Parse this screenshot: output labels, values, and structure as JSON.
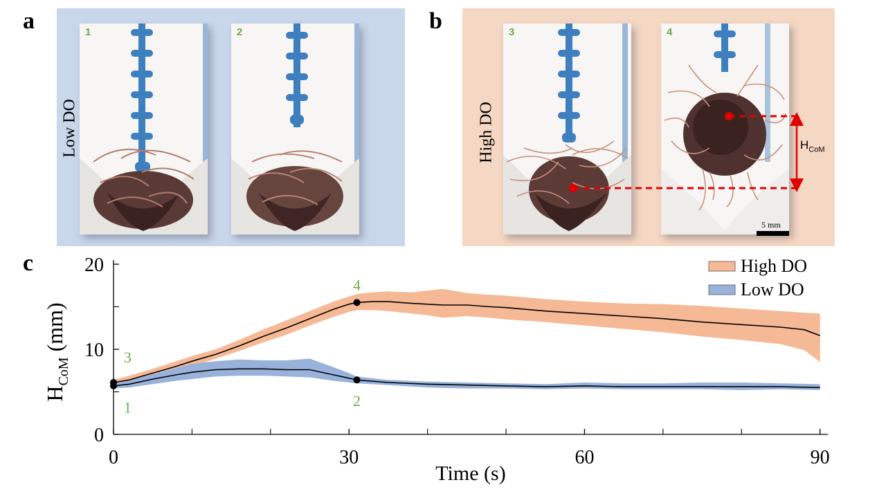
{
  "panels": {
    "a": {
      "letter": "a",
      "label": "Low DO",
      "photos": [
        "1",
        "2"
      ]
    },
    "b": {
      "letter": "b",
      "label": "High DO",
      "photos": [
        "3",
        "4"
      ],
      "hcom_label_main": "H",
      "hcom_label_sub": "CoM",
      "scale_label": "5 mm"
    },
    "c": {
      "letter": "c"
    }
  },
  "colors": {
    "panel_a_bg": "#c9d7eb",
    "panel_b_bg": "#f5d8c4",
    "high_do_band": "#f6b995",
    "low_do_band": "#98b2dc",
    "mean_line": "#000000",
    "marker": "#e00000",
    "photo_numbers": "#6fa94a",
    "annotation_numbers": "#6fa94a"
  },
  "chart_data": {
    "type": "area",
    "xlabel": "Time (s)",
    "ylabel_main": "H",
    "ylabel_sub": "CoM",
    "ylabel_unit": " (mm)",
    "xlim": [
      0,
      91
    ],
    "ylim": [
      0,
      20
    ],
    "xticks": [
      0,
      30,
      60,
      90
    ],
    "xminor_ticks": [
      10,
      20,
      40,
      50,
      70,
      80
    ],
    "yticks": [
      0,
      10,
      20
    ],
    "yminor_ticks": [
      5,
      15
    ],
    "legend_position": "top-right",
    "series": [
      {
        "name": "High DO",
        "x": [
          0,
          2,
          5,
          8,
          10,
          13,
          16,
          19,
          22,
          25,
          28,
          30,
          31,
          33,
          35,
          38,
          40,
          42,
          45,
          48,
          50,
          55,
          60,
          65,
          70,
          75,
          80,
          85,
          88,
          90
        ],
        "mean": [
          6.1,
          6.4,
          7.2,
          8.0,
          8.6,
          9.4,
          10.4,
          11.5,
          12.5,
          13.6,
          14.7,
          15.3,
          15.5,
          15.6,
          15.6,
          15.4,
          15.3,
          15.2,
          15.2,
          15.0,
          14.9,
          14.5,
          14.2,
          13.9,
          13.6,
          13.2,
          12.9,
          12.6,
          12.3,
          11.6
        ],
        "upper": [
          6.4,
          6.9,
          7.7,
          8.6,
          9.2,
          10.0,
          11.1,
          12.3,
          13.4,
          14.5,
          15.6,
          16.2,
          16.5,
          16.7,
          16.8,
          16.7,
          16.9,
          17.1,
          16.6,
          16.4,
          16.3,
          15.9,
          15.6,
          15.4,
          15.3,
          15.1,
          14.8,
          14.5,
          14.3,
          14.2
        ],
        "lower": [
          5.8,
          6.0,
          6.8,
          7.5,
          8.0,
          8.9,
          9.8,
          10.8,
          11.7,
          12.8,
          13.8,
          14.4,
          14.6,
          14.6,
          14.5,
          14.2,
          14.0,
          13.7,
          13.9,
          13.7,
          13.5,
          13.2,
          12.8,
          12.4,
          12.0,
          11.5,
          11.1,
          10.6,
          9.9,
          8.5
        ]
      },
      {
        "name": "Low DO",
        "x": [
          0,
          2,
          5,
          8,
          10,
          13,
          16,
          19,
          22,
          25,
          28,
          30,
          31,
          35,
          40,
          45,
          50,
          55,
          60,
          65,
          70,
          75,
          80,
          85,
          90
        ],
        "mean": [
          5.7,
          5.9,
          6.5,
          7.0,
          7.3,
          7.6,
          7.7,
          7.7,
          7.6,
          7.6,
          7.0,
          6.6,
          6.4,
          6.1,
          5.9,
          5.8,
          5.7,
          5.6,
          5.7,
          5.6,
          5.6,
          5.6,
          5.6,
          5.6,
          5.5
        ],
        "upper": [
          6.0,
          6.3,
          7.1,
          7.8,
          8.3,
          8.6,
          8.8,
          8.7,
          8.7,
          8.9,
          7.9,
          7.2,
          6.8,
          6.4,
          6.2,
          6.1,
          6.0,
          5.9,
          6.1,
          6.0,
          6.0,
          6.1,
          6.1,
          6.0,
          5.9
        ],
        "lower": [
          5.4,
          5.5,
          5.9,
          6.3,
          6.5,
          6.8,
          6.9,
          6.9,
          6.8,
          6.7,
          6.3,
          6.1,
          6.0,
          5.8,
          5.5,
          5.4,
          5.4,
          5.3,
          5.4,
          5.3,
          5.3,
          5.3,
          5.2,
          5.3,
          5.2
        ]
      }
    ],
    "points": [
      {
        "label": "1",
        "x": 0,
        "y": 5.7,
        "label_x": 1.8,
        "label_y": 3.2
      },
      {
        "label": "2",
        "x": 31,
        "y": 6.4,
        "label_x": 31,
        "label_y": 4.0
      },
      {
        "label": "3",
        "x": 0,
        "y": 6.1,
        "label_x": 1.8,
        "label_y": 9.1
      },
      {
        "label": "4",
        "x": 31,
        "y": 15.5,
        "label_x": 31,
        "label_y": 17.6
      }
    ]
  }
}
